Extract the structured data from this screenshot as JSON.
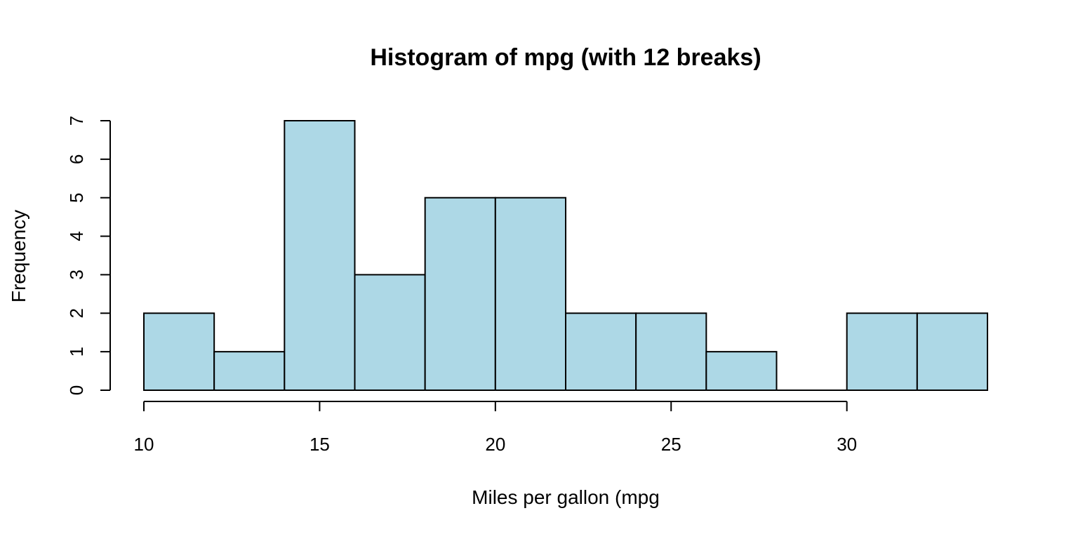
{
  "chart_data": {
    "type": "bar",
    "title": "Histogram of mpg (with 12 breaks)",
    "xlabel": "Miles per gallon (mpg",
    "ylabel": "Frequency",
    "bins": [
      {
        "start": 10,
        "end": 12,
        "count": 2
      },
      {
        "start": 12,
        "end": 14,
        "count": 1
      },
      {
        "start": 14,
        "end": 16,
        "count": 7
      },
      {
        "start": 16,
        "end": 18,
        "count": 3
      },
      {
        "start": 18,
        "end": 20,
        "count": 5
      },
      {
        "start": 20,
        "end": 22,
        "count": 5
      },
      {
        "start": 22,
        "end": 24,
        "count": 2
      },
      {
        "start": 24,
        "end": 26,
        "count": 2
      },
      {
        "start": 26,
        "end": 28,
        "count": 1
      },
      {
        "start": 28,
        "end": 30,
        "count": 0
      },
      {
        "start": 30,
        "end": 32,
        "count": 2
      },
      {
        "start": 32,
        "end": 34,
        "count": 2
      }
    ],
    "x_ticks": [
      "10",
      "15",
      "20",
      "25",
      "30"
    ],
    "y_ticks": [
      "0",
      "1",
      "2",
      "3",
      "4",
      "5",
      "6",
      "7"
    ],
    "xlim": [
      10,
      34
    ],
    "ylim": [
      0,
      7
    ],
    "x_axis_range": [
      10,
      30
    ],
    "grid": false,
    "bar_color": "#add8e6",
    "border_color": "#000000"
  }
}
